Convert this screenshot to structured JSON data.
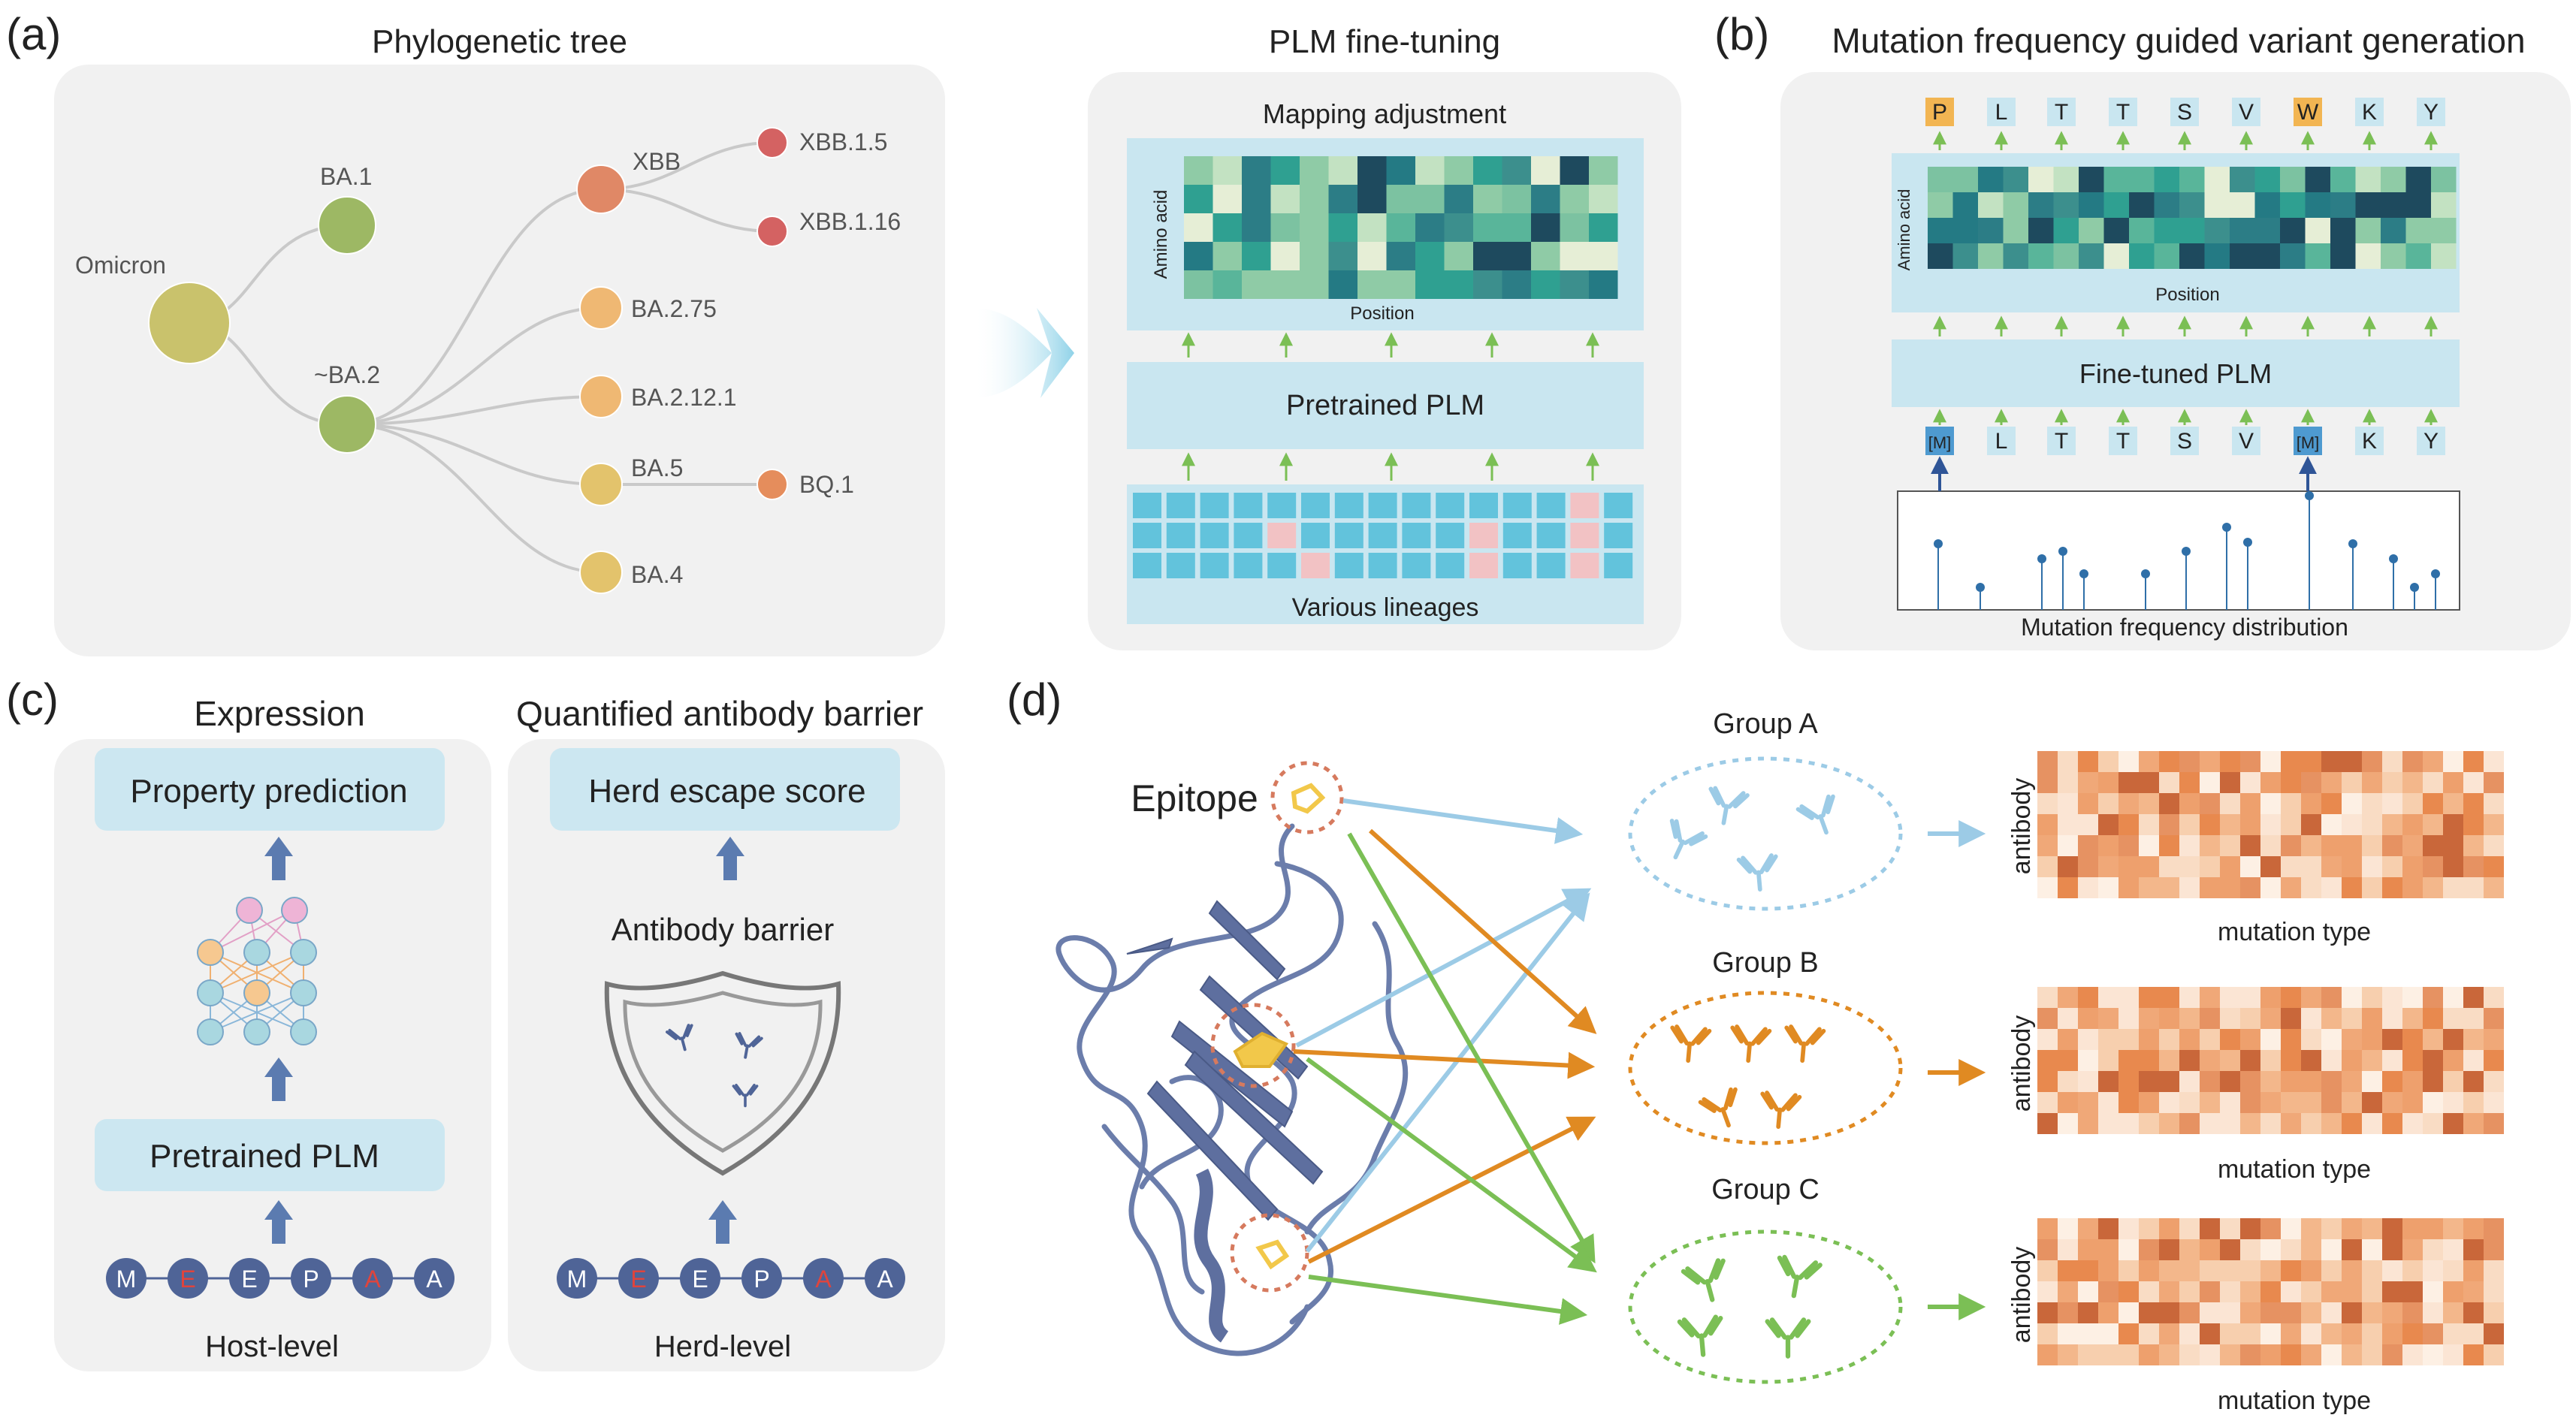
{
  "colors": {
    "panel": "#f1f1f1",
    "lightblue": "#c9e6f0",
    "gridcell": "#62c3dc",
    "pinkcell": "#f2c2c4",
    "arrowgreen": "#7bbf55",
    "arrowblue": "#9ccbe6",
    "arroworange": "#e08a22",
    "navy": "#4f6497",
    "bigarrow": "#8fd2e8"
  },
  "panel_a": {
    "letter": "(a)",
    "tree_title": "Phylogenetic tree",
    "nodes": [
      {
        "label": "Omicron",
        "color": "#c9c26c"
      },
      {
        "label": "BA.1",
        "color": "#9db864"
      },
      {
        "label": "~BA.2",
        "color": "#9db864"
      },
      {
        "label": "XBB",
        "color": "#e08866"
      },
      {
        "label": "XBB.1.5",
        "color": "#d46262"
      },
      {
        "label": "XBB.1.16",
        "color": "#d46262"
      },
      {
        "label": "BA.2.75",
        "color": "#efb873"
      },
      {
        "label": "BA.2.12.1",
        "color": "#efb873"
      },
      {
        "label": "BA.5",
        "color": "#e3c36c"
      },
      {
        "label": "BQ.1",
        "color": "#e58d5c"
      },
      {
        "label": "BA.4",
        "color": "#e3c36c"
      }
    ],
    "plm_title": "PLM fine-tuning",
    "mapping_adjustment": "Mapping adjustment",
    "amino_acid": "Amino acid",
    "position": "Position",
    "pretrained_plm": "Pretrained PLM",
    "various_lineages": "Various lineages"
  },
  "panel_b": {
    "letter": "(b)",
    "title": "Mutation frequency guided variant generation",
    "top_tokens": [
      "P",
      "L",
      "T",
      "T",
      "S",
      "V",
      "W",
      "K",
      "Y"
    ],
    "bottom_tokens": [
      "[M]",
      "L",
      "T",
      "T",
      "S",
      "V",
      "[M]",
      "K",
      "Y"
    ],
    "amino_acid": "Amino acid",
    "position": "Position",
    "fine_tuned_plm": "Fine-tuned PLM",
    "mutation_freq_label": "Mutation frequency distribution"
  },
  "panel_c": {
    "letter": "(c)",
    "expression": {
      "title": "Expression",
      "property_prediction": "Property prediction",
      "pretrained_plm": "Pretrained PLM",
      "level": "Host-level",
      "tokens": [
        "M",
        "E",
        "E",
        "P",
        "A",
        "A"
      ]
    },
    "barrier": {
      "title": "Quantified antibody barrier",
      "herd_escape_score": "Herd escape score",
      "antibody_barrier": "Antibody barrier",
      "level": "Herd-level",
      "tokens": [
        "M",
        "E",
        "E",
        "P",
        "A",
        "A"
      ]
    }
  },
  "panel_d": {
    "letter": "(d)",
    "epitope": "Epitope",
    "groups": [
      {
        "label": "Group A",
        "color": "#9ccbe6"
      },
      {
        "label": "Group B",
        "color": "#e08a22"
      },
      {
        "label": "Group C",
        "color": "#7bbf55"
      }
    ],
    "antibody": "antibody",
    "mutation_type": "mutation type"
  }
}
